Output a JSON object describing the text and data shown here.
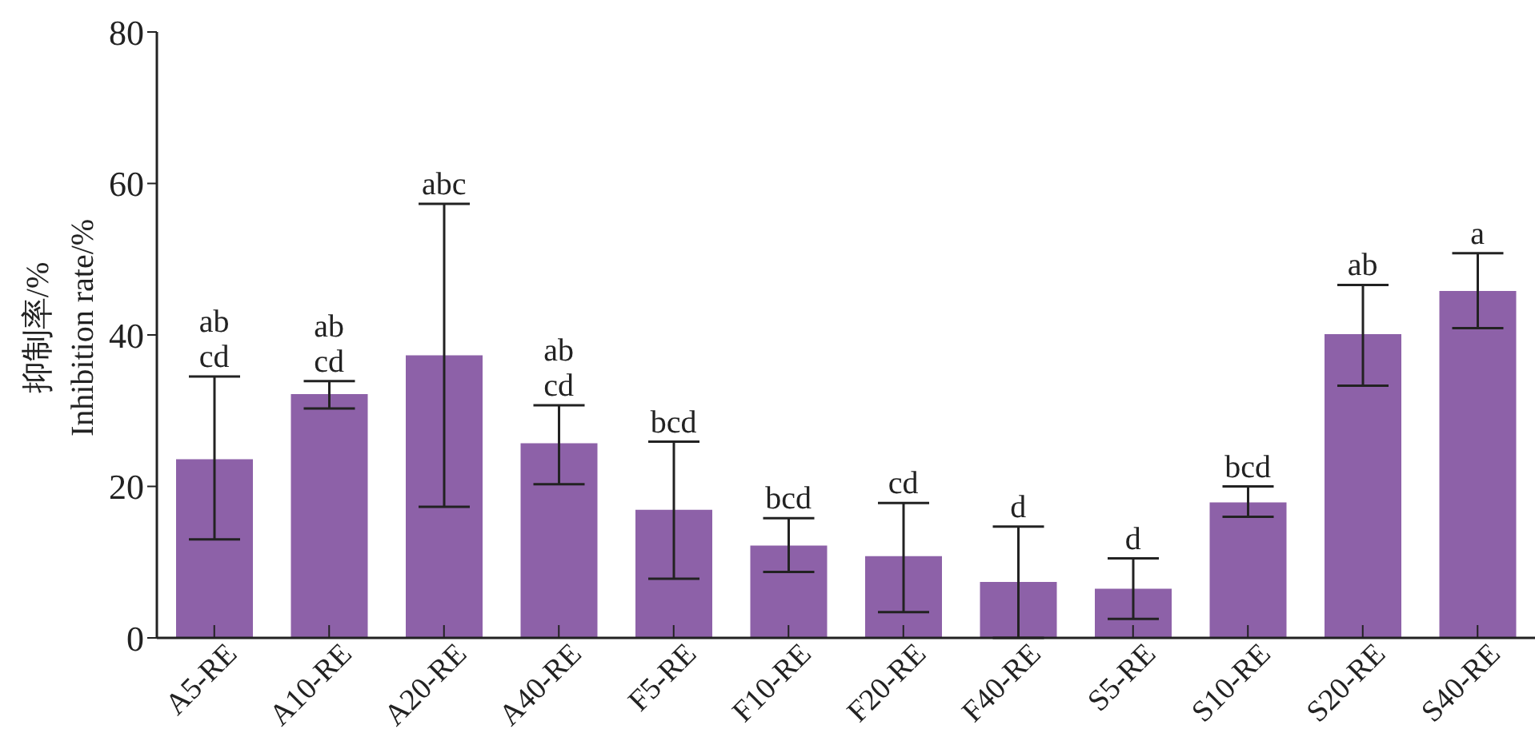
{
  "chart_data": {
    "type": "bar",
    "ylabel": "抑制率/%\nInhibition rate/%",
    "categories": [
      "A5-RE",
      "A10-RE",
      "A20-RE",
      "A40-RE",
      "F5-RE",
      "F10-RE",
      "F20-RE",
      "F40-RE",
      "S5-RE",
      "S10-RE",
      "S20-RE",
      "S40-RE"
    ],
    "values": [
      23.6,
      32.2,
      37.3,
      25.7,
      16.9,
      12.2,
      10.8,
      7.4,
      6.5,
      17.9,
      40.1,
      45.8
    ],
    "errors": [
      [
        13.0,
        34.5
      ],
      [
        30.3,
        33.9
      ],
      [
        17.3,
        57.3
      ],
      [
        20.3,
        30.7
      ],
      [
        7.8,
        25.9
      ],
      [
        8.7,
        15.8
      ],
      [
        3.4,
        17.8
      ],
      [
        0,
        14.7
      ],
      [
        2.5,
        10.5
      ],
      [
        16.0,
        20.0
      ],
      [
        33.3,
        46.6
      ],
      [
        40.9,
        50.8
      ]
    ],
    "color": "#8d61a8",
    "ylim": [
      0,
      80
    ],
    "yticks": [
      0,
      20,
      40,
      60,
      80
    ],
    "grid": false,
    "annotations": [
      {
        "text": "ab\ncd",
        "x": "A5-RE",
        "y": 34.5
      },
      {
        "text": "ab\ncd",
        "x": "A10-RE",
        "y": 33.9
      },
      {
        "text": "abc",
        "x": "A20-RE",
        "y": 57.3
      },
      {
        "text": "ab\ncd",
        "x": "A40-RE",
        "y": 30.7
      },
      {
        "text": "bcd",
        "x": "F5-RE",
        "y": 25.9
      },
      {
        "text": "bcd",
        "x": "F10-RE",
        "y": 15.8
      },
      {
        "text": "cd",
        "x": "F20-RE",
        "y": 17.8
      },
      {
        "text": "d",
        "x": "F40-RE",
        "y": 14.7
      },
      {
        "text": "d",
        "x": "S5-RE",
        "y": 10.5
      },
      {
        "text": "bcd",
        "x": "S10-RE",
        "y": 20.0
      },
      {
        "text": "ab",
        "x": "S20-RE",
        "y": 46.6
      },
      {
        "text": "a",
        "x": "S40-RE",
        "y": 50.8
      }
    ]
  }
}
